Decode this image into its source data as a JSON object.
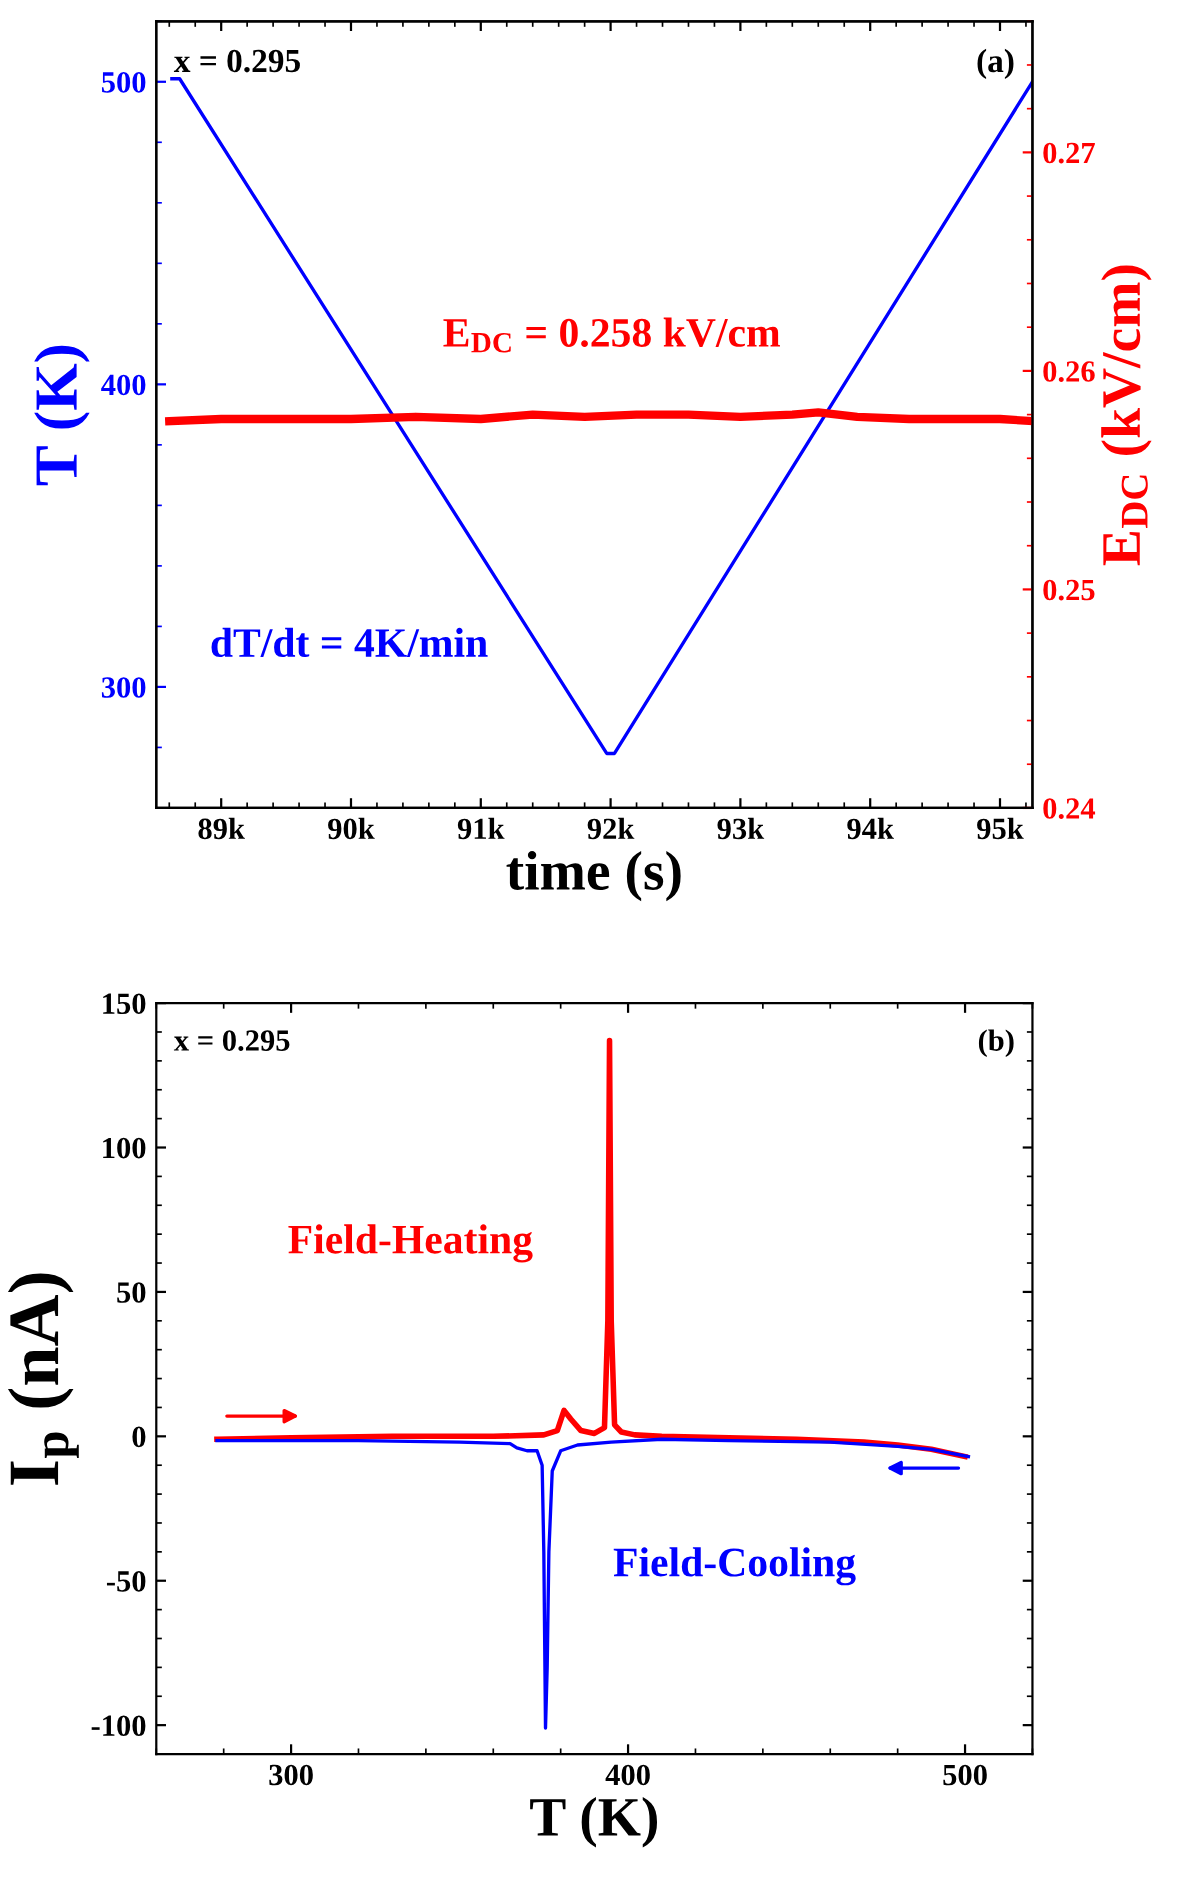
{
  "chart_data": [
    {
      "type": "line",
      "xlabel": "time (s)",
      "ylabel": "T (K)",
      "y2label": "E$_{DC}$ (kV/cm)",
      "xlim": [
        88500,
        95250
      ],
      "xticks": [
        {
          "value": 89000,
          "label": "89k"
        },
        {
          "value": 90000,
          "label": "90k"
        },
        {
          "value": 91000,
          "label": "91k"
        },
        {
          "value": 92000,
          "label": "92k"
        },
        {
          "value": 93000,
          "label": "93k"
        },
        {
          "value": 94000,
          "label": "94k"
        },
        {
          "value": 95000,
          "label": "95k"
        }
      ],
      "ylim": [
        260,
        520
      ],
      "yticks": [
        300,
        400,
        500
      ],
      "y2lim": [
        0.24,
        0.276
      ],
      "y2ticks": [
        0.24,
        0.25,
        0.26,
        0.27
      ],
      "series": [
        {
          "color": "#0000ff",
          "x": [
            88620,
            88680,
            91970,
            92030,
            95250
          ],
          "values": [
            501,
            501,
            278,
            278,
            500
          ]
        },
        {
          "color": "#ff0000",
          "axis": "y2",
          "x": [
            88600,
            89000,
            89500,
            90000,
            90500,
            91000,
            91400,
            91800,
            92200,
            92600,
            93000,
            93400,
            93600,
            93900,
            94300,
            94700,
            95000,
            95250
          ],
          "values": [
            0.2577,
            0.2578,
            0.2578,
            0.2578,
            0.2579,
            0.2578,
            0.258,
            0.2579,
            0.258,
            0.258,
            0.2579,
            0.258,
            0.2581,
            0.2579,
            0.2578,
            0.2578,
            0.2578,
            0.2577
          ]
        }
      ],
      "annotations": [
        "x = 0.295",
        "(a)",
        "E$_{DC}$ = 0.258 kV/cm",
        "dT/dt = 4K/min"
      ],
      "grid": false,
      "legend": false
    },
    {
      "type": "line",
      "xlabel": "T (K)",
      "ylabel": "I$_{p}$ (nA)",
      "xlim": [
        260,
        520
      ],
      "xticks": [
        300,
        400,
        500
      ],
      "ylim": [
        -110,
        150
      ],
      "yticks": [
        -100,
        -50,
        0,
        50,
        100,
        150
      ],
      "series": [
        {
          "name": "Field-Heating",
          "color": "#ff0000",
          "x": [
            278,
            300,
            330,
            360,
            375,
            379,
            381,
            383,
            386,
            390,
            393,
            394,
            394.5,
            395,
            396,
            398,
            402,
            410,
            430,
            450,
            470,
            480,
            490,
            500
          ],
          "values": [
            -1,
            -0.5,
            0,
            0,
            0.5,
            2,
            9,
            6,
            2,
            1,
            3,
            40,
            137,
            40,
            4,
            1.5,
            0.5,
            0,
            -0.5,
            -1,
            -2,
            -3,
            -4.5,
            -7
          ]
        },
        {
          "name": "Field-Cooling",
          "color": "#0000ff",
          "x": [
            501,
            490,
            480,
            460,
            430,
            410,
            395,
            385,
            380,
            377.5,
            376.5,
            376,
            375.5,
            375,
            374.5,
            373,
            370,
            367,
            365,
            350,
            320,
            300,
            278
          ],
          "values": [
            -7,
            -4.5,
            -3.5,
            -2,
            -1.5,
            -1,
            -2,
            -3,
            -5,
            -12,
            -40,
            -80,
            -101,
            -40,
            -10,
            -5,
            -5,
            -4,
            -2.5,
            -2,
            -1.5,
            -1.5,
            -1.5
          ]
        }
      ],
      "annotations": [
        "x = 0.295",
        "(b)"
      ],
      "grid": false,
      "legend": false
    }
  ]
}
